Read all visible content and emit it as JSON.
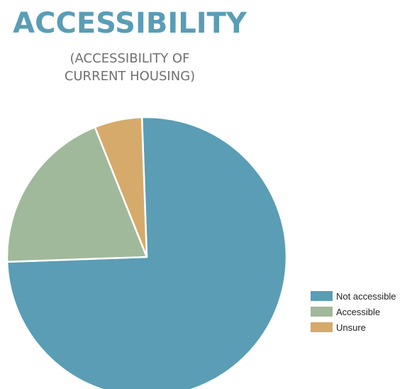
{
  "title": "ACCESSIBILITY",
  "subtitle_lines": [
    "(ACCESSIBILITY OF",
    "CURRENT HOUSING)"
  ],
  "chart_data": {
    "type": "pie",
    "title": "ACCESSIBILITY",
    "subtitle": "(ACCESSIBILITY OF CURRENT HOUSING)",
    "start_angle_deg": -2,
    "direction": "clockwise",
    "legend_position": "bottom-right",
    "slices": [
      {
        "label": "Not accessible",
        "value": 75,
        "color": "#5a9db5"
      },
      {
        "label": "Accessible",
        "value": 19.5,
        "color": "#a0b99a"
      },
      {
        "label": "Unsure",
        "value": 5.5,
        "color": "#d5aa6b"
      }
    ]
  }
}
